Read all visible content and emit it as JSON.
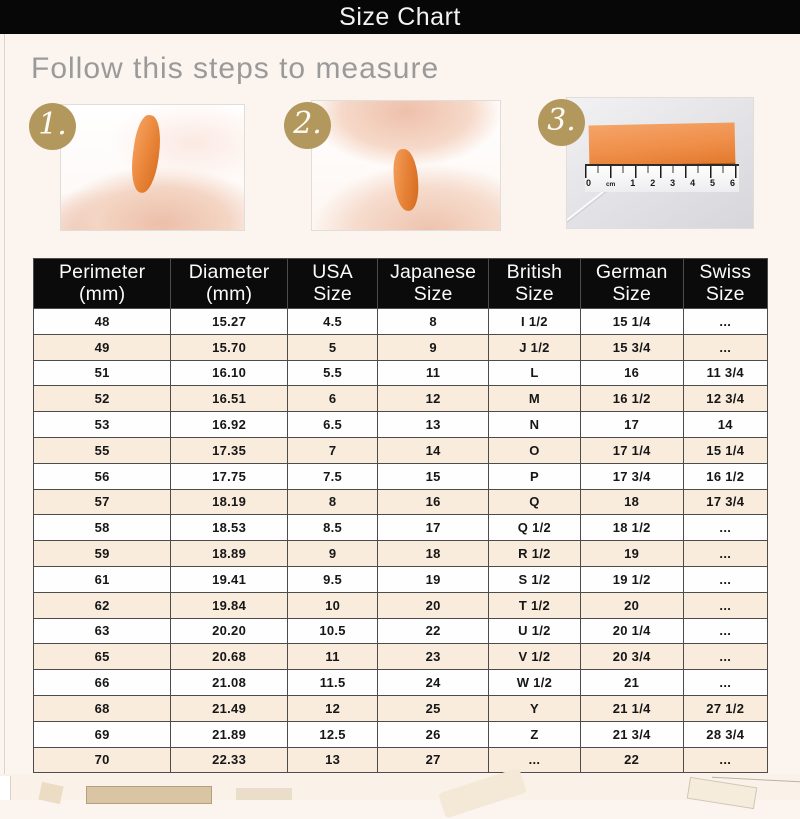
{
  "title_bar": {
    "title": "Size Chart"
  },
  "intro": {
    "heading": "Follow this steps to measure"
  },
  "steps": [
    {
      "number": "1."
    },
    {
      "number": "2."
    },
    {
      "number": "3.",
      "ruler_labels": [
        "0",
        "cm",
        "1",
        "2",
        "3",
        "4",
        "5",
        "6"
      ]
    }
  ],
  "table": {
    "headers": [
      {
        "key": "perimeter",
        "line1": "Perimeter",
        "line2": "(mm)"
      },
      {
        "key": "diameter",
        "line1": "Diameter",
        "line2": "(mm)"
      },
      {
        "key": "usa",
        "line1": "USA",
        "line2": "Size"
      },
      {
        "key": "japanese",
        "line1": "Japanese",
        "line2": "Size"
      },
      {
        "key": "british",
        "line1": "British",
        "line2": "Size"
      },
      {
        "key": "german",
        "line1": "German",
        "line2": "Size"
      },
      {
        "key": "swiss",
        "line1": "Swiss",
        "line2": "Size"
      }
    ],
    "rows": [
      [
        "48",
        "15.27",
        "4.5",
        "8",
        "I 1/2",
        "15 1/4",
        "..."
      ],
      [
        "49",
        "15.70",
        "5",
        "9",
        "J 1/2",
        "15 3/4",
        "..."
      ],
      [
        "51",
        "16.10",
        "5.5",
        "11",
        "L",
        "16",
        "11 3/4"
      ],
      [
        "52",
        "16.51",
        "6",
        "12",
        "M",
        "16 1/2",
        "12 3/4"
      ],
      [
        "53",
        "16.92",
        "6.5",
        "13",
        "N",
        "17",
        "14"
      ],
      [
        "55",
        "17.35",
        "7",
        "14",
        "O",
        "17 1/4",
        "15 1/4"
      ],
      [
        "56",
        "17.75",
        "7.5",
        "15",
        "P",
        "17 3/4",
        "16 1/2"
      ],
      [
        "57",
        "18.19",
        "8",
        "16",
        "Q",
        "18",
        "17 3/4"
      ],
      [
        "58",
        "18.53",
        "8.5",
        "17",
        "Q 1/2",
        "18 1/2",
        "..."
      ],
      [
        "59",
        "18.89",
        "9",
        "18",
        "R 1/2",
        "19",
        "..."
      ],
      [
        "61",
        "19.41",
        "9.5",
        "19",
        "S 1/2",
        "19 1/2",
        "..."
      ],
      [
        "62",
        "19.84",
        "10",
        "20",
        "T 1/2",
        "20",
        "..."
      ],
      [
        "63",
        "20.20",
        "10.5",
        "22",
        "U 1/2",
        "20 1/4",
        "..."
      ],
      [
        "65",
        "20.68",
        "11",
        "23",
        "V 1/2",
        "20 3/4",
        "..."
      ],
      [
        "66",
        "21.08",
        "11.5",
        "24",
        "W 1/2",
        "21",
        "..."
      ],
      [
        "68",
        "21.49",
        "12",
        "25",
        "Y",
        "21 1/4",
        "27 1/2"
      ],
      [
        "69",
        "21.89",
        "12.5",
        "26",
        "Z",
        "21 3/4",
        "28 3/4"
      ],
      [
        "70",
        "22.33",
        "13",
        "27",
        "...",
        "22",
        "..."
      ]
    ]
  },
  "colors": {
    "header_bg": "#0b0b0b",
    "row_peach": "#f9ecdc",
    "badge_tan": "#b3985e",
    "tape_orange": "#e8853a"
  }
}
